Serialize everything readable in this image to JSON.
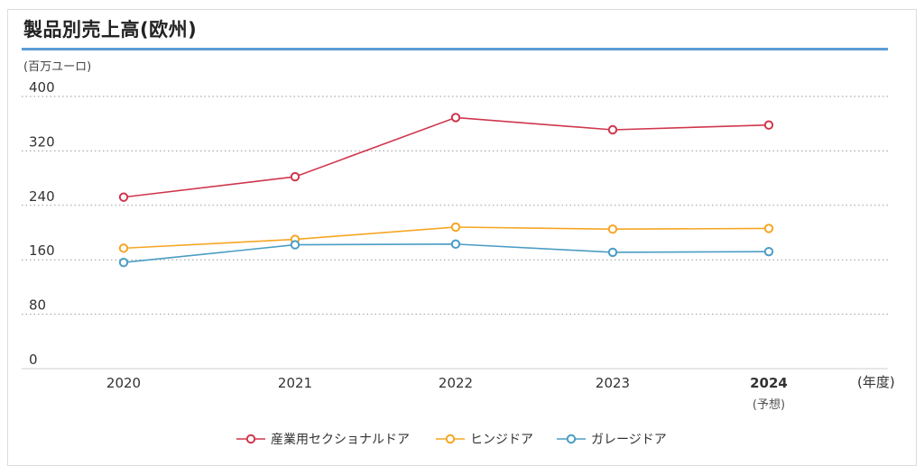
{
  "title": "製品別売上高(欧州)",
  "chart_data": {
    "type": "line",
    "title": "製品別売上高(欧州)",
    "ylabel": "(百万ユーロ)",
    "xlabel": "(年度)",
    "categories": [
      "2020",
      "2021",
      "2022",
      "2023",
      "2024"
    ],
    "category_notes": [
      "",
      "",
      "",
      "",
      "(予想)"
    ],
    "bold_categories": [
      "2024"
    ],
    "ylim": [
      0,
      400
    ],
    "yticks": [
      0,
      80,
      160,
      240,
      320,
      400
    ],
    "grid": true,
    "legend": "bottom",
    "series": [
      {
        "name": "産業用セクショナルドア",
        "color": "#d0364c",
        "values": [
          252,
          282,
          369,
          351,
          358
        ]
      },
      {
        "name": "ヒンジドア",
        "color": "#f5a623",
        "values": [
          177,
          190,
          208,
          205,
          206
        ]
      },
      {
        "name": "ガレージドア",
        "color": "#4a9dc4",
        "values": [
          156,
          182,
          183,
          171,
          172
        ]
      }
    ]
  }
}
